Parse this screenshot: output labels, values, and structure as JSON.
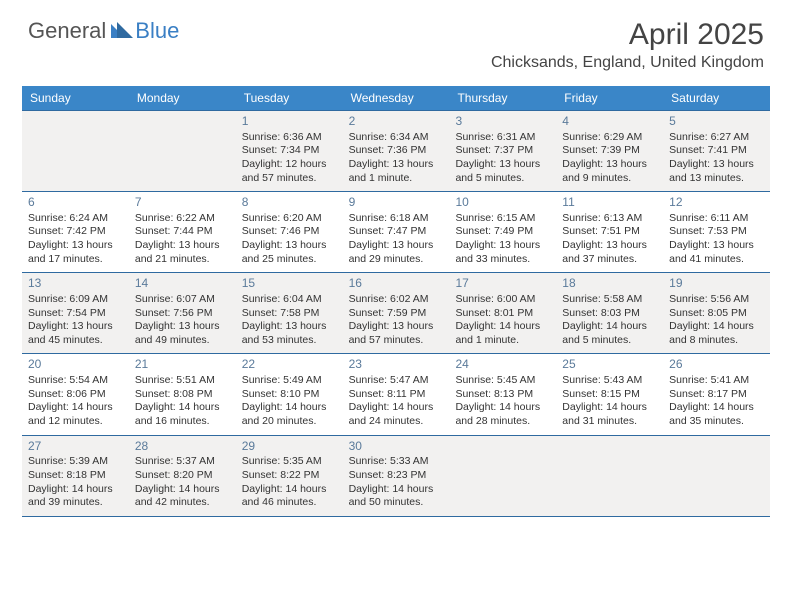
{
  "logo": {
    "general": "General",
    "blue": "Blue"
  },
  "title": "April 2025",
  "location": "Chicksands, England, United Kingdom",
  "colors": {
    "header_bg": "#3a86c8",
    "row_border": "#2f6aa0",
    "shade_bg": "#f2f1f0",
    "daynum_color": "#5a7a9a",
    "logo_blue": "#3a7fc4"
  },
  "day_headers": [
    "Sunday",
    "Monday",
    "Tuesday",
    "Wednesday",
    "Thursday",
    "Friday",
    "Saturday"
  ],
  "weeks": [
    [
      {
        "num": "",
        "blank": true
      },
      {
        "num": "",
        "blank": true
      },
      {
        "num": "1",
        "sunrise": "Sunrise: 6:36 AM",
        "sunset": "Sunset: 7:34 PM",
        "daylight": "Daylight: 12 hours and 57 minutes."
      },
      {
        "num": "2",
        "sunrise": "Sunrise: 6:34 AM",
        "sunset": "Sunset: 7:36 PM",
        "daylight": "Daylight: 13 hours and 1 minute."
      },
      {
        "num": "3",
        "sunrise": "Sunrise: 6:31 AM",
        "sunset": "Sunset: 7:37 PM",
        "daylight": "Daylight: 13 hours and 5 minutes."
      },
      {
        "num": "4",
        "sunrise": "Sunrise: 6:29 AM",
        "sunset": "Sunset: 7:39 PM",
        "daylight": "Daylight: 13 hours and 9 minutes."
      },
      {
        "num": "5",
        "sunrise": "Sunrise: 6:27 AM",
        "sunset": "Sunset: 7:41 PM",
        "daylight": "Daylight: 13 hours and 13 minutes."
      }
    ],
    [
      {
        "num": "6",
        "sunrise": "Sunrise: 6:24 AM",
        "sunset": "Sunset: 7:42 PM",
        "daylight": "Daylight: 13 hours and 17 minutes."
      },
      {
        "num": "7",
        "sunrise": "Sunrise: 6:22 AM",
        "sunset": "Sunset: 7:44 PM",
        "daylight": "Daylight: 13 hours and 21 minutes."
      },
      {
        "num": "8",
        "sunrise": "Sunrise: 6:20 AM",
        "sunset": "Sunset: 7:46 PM",
        "daylight": "Daylight: 13 hours and 25 minutes."
      },
      {
        "num": "9",
        "sunrise": "Sunrise: 6:18 AM",
        "sunset": "Sunset: 7:47 PM",
        "daylight": "Daylight: 13 hours and 29 minutes."
      },
      {
        "num": "10",
        "sunrise": "Sunrise: 6:15 AM",
        "sunset": "Sunset: 7:49 PM",
        "daylight": "Daylight: 13 hours and 33 minutes."
      },
      {
        "num": "11",
        "sunrise": "Sunrise: 6:13 AM",
        "sunset": "Sunset: 7:51 PM",
        "daylight": "Daylight: 13 hours and 37 minutes."
      },
      {
        "num": "12",
        "sunrise": "Sunrise: 6:11 AM",
        "sunset": "Sunset: 7:53 PM",
        "daylight": "Daylight: 13 hours and 41 minutes."
      }
    ],
    [
      {
        "num": "13",
        "sunrise": "Sunrise: 6:09 AM",
        "sunset": "Sunset: 7:54 PM",
        "daylight": "Daylight: 13 hours and 45 minutes."
      },
      {
        "num": "14",
        "sunrise": "Sunrise: 6:07 AM",
        "sunset": "Sunset: 7:56 PM",
        "daylight": "Daylight: 13 hours and 49 minutes."
      },
      {
        "num": "15",
        "sunrise": "Sunrise: 6:04 AM",
        "sunset": "Sunset: 7:58 PM",
        "daylight": "Daylight: 13 hours and 53 minutes."
      },
      {
        "num": "16",
        "sunrise": "Sunrise: 6:02 AM",
        "sunset": "Sunset: 7:59 PM",
        "daylight": "Daylight: 13 hours and 57 minutes."
      },
      {
        "num": "17",
        "sunrise": "Sunrise: 6:00 AM",
        "sunset": "Sunset: 8:01 PM",
        "daylight": "Daylight: 14 hours and 1 minute."
      },
      {
        "num": "18",
        "sunrise": "Sunrise: 5:58 AM",
        "sunset": "Sunset: 8:03 PM",
        "daylight": "Daylight: 14 hours and 5 minutes."
      },
      {
        "num": "19",
        "sunrise": "Sunrise: 5:56 AM",
        "sunset": "Sunset: 8:05 PM",
        "daylight": "Daylight: 14 hours and 8 minutes."
      }
    ],
    [
      {
        "num": "20",
        "sunrise": "Sunrise: 5:54 AM",
        "sunset": "Sunset: 8:06 PM",
        "daylight": "Daylight: 14 hours and 12 minutes."
      },
      {
        "num": "21",
        "sunrise": "Sunrise: 5:51 AM",
        "sunset": "Sunset: 8:08 PM",
        "daylight": "Daylight: 14 hours and 16 minutes."
      },
      {
        "num": "22",
        "sunrise": "Sunrise: 5:49 AM",
        "sunset": "Sunset: 8:10 PM",
        "daylight": "Daylight: 14 hours and 20 minutes."
      },
      {
        "num": "23",
        "sunrise": "Sunrise: 5:47 AM",
        "sunset": "Sunset: 8:11 PM",
        "daylight": "Daylight: 14 hours and 24 minutes."
      },
      {
        "num": "24",
        "sunrise": "Sunrise: 5:45 AM",
        "sunset": "Sunset: 8:13 PM",
        "daylight": "Daylight: 14 hours and 28 minutes."
      },
      {
        "num": "25",
        "sunrise": "Sunrise: 5:43 AM",
        "sunset": "Sunset: 8:15 PM",
        "daylight": "Daylight: 14 hours and 31 minutes."
      },
      {
        "num": "26",
        "sunrise": "Sunrise: 5:41 AM",
        "sunset": "Sunset: 8:17 PM",
        "daylight": "Daylight: 14 hours and 35 minutes."
      }
    ],
    [
      {
        "num": "27",
        "sunrise": "Sunrise: 5:39 AM",
        "sunset": "Sunset: 8:18 PM",
        "daylight": "Daylight: 14 hours and 39 minutes."
      },
      {
        "num": "28",
        "sunrise": "Sunrise: 5:37 AM",
        "sunset": "Sunset: 8:20 PM",
        "daylight": "Daylight: 14 hours and 42 minutes."
      },
      {
        "num": "29",
        "sunrise": "Sunrise: 5:35 AM",
        "sunset": "Sunset: 8:22 PM",
        "daylight": "Daylight: 14 hours and 46 minutes."
      },
      {
        "num": "30",
        "sunrise": "Sunrise: 5:33 AM",
        "sunset": "Sunset: 8:23 PM",
        "daylight": "Daylight: 14 hours and 50 minutes."
      },
      {
        "num": "",
        "blank": true
      },
      {
        "num": "",
        "blank": true
      },
      {
        "num": "",
        "blank": true
      }
    ]
  ]
}
